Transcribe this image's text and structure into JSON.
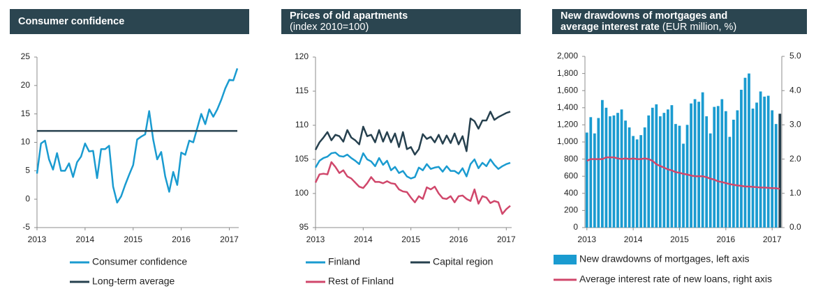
{
  "chart_data": [
    {
      "type": "line",
      "title": "Consumer confidence",
      "categories": [
        "2013",
        null,
        null,
        null,
        null,
        null,
        null,
        null,
        null,
        null,
        null,
        null,
        "2014",
        null,
        null,
        null,
        null,
        null,
        null,
        null,
        null,
        null,
        null,
        null,
        "2015",
        null,
        null,
        null,
        null,
        null,
        null,
        null,
        null,
        null,
        null,
        null,
        "2016",
        null,
        null,
        null,
        null,
        null,
        null,
        null,
        null,
        null,
        null,
        null,
        "2017",
        null,
        null
      ],
      "series": [
        {
          "name": "Consumer confidence",
          "color": "#1a9bd0",
          "values": [
            4.5,
            9.8,
            10.3,
            7,
            5.2,
            8.1,
            5,
            5,
            6.3,
            3.9,
            6.5,
            7.5,
            9.8,
            8.4,
            8.5,
            3.7,
            8.8,
            8.8,
            9.4,
            2.2,
            -0.6,
            0.5,
            2.5,
            4.3,
            6,
            10.5,
            11,
            11.4,
            15.5,
            10.5,
            7,
            8.3,
            4,
            1.3,
            4.8,
            2.5,
            8.2,
            7.8,
            10.3,
            10,
            12.5,
            15,
            13.2,
            15.8,
            14.5,
            15.8,
            17.5,
            19.5,
            21,
            20.9,
            23
          ]
        },
        {
          "name": "Long-term average",
          "color": "#26404e",
          "values": [
            12,
            12,
            12,
            12,
            12,
            12,
            12,
            12,
            12,
            12,
            12,
            12,
            12,
            12,
            12,
            12,
            12,
            12,
            12,
            12,
            12,
            12,
            12,
            12,
            12,
            12,
            12,
            12,
            12,
            12,
            12,
            12,
            12,
            12,
            12,
            12,
            12,
            12,
            12,
            12,
            12,
            12,
            12,
            12,
            12,
            12,
            12,
            12,
            12,
            12,
            12
          ]
        }
      ],
      "ylim": [
        -5,
        25
      ],
      "yticks": [
        -5,
        0,
        5,
        10,
        15,
        20,
        25
      ],
      "grid": false
    },
    {
      "type": "line",
      "title": "Prices of old apartments",
      "subtitle": "(index 2010=100)",
      "categories": [
        "2013",
        null,
        null,
        null,
        null,
        null,
        null,
        null,
        null,
        null,
        null,
        null,
        "2014",
        null,
        null,
        null,
        null,
        null,
        null,
        null,
        null,
        null,
        null,
        null,
        "2015",
        null,
        null,
        null,
        null,
        null,
        null,
        null,
        null,
        null,
        null,
        null,
        "2016",
        null,
        null,
        null,
        null,
        null,
        null,
        null,
        null,
        null,
        null,
        null,
        "2017",
        null
      ],
      "series": [
        {
          "name": "Finland",
          "color": "#1a9bd0",
          "values": [
            103.8,
            104.8,
            105.2,
            105.4,
            105.9,
            106,
            105.5,
            105.4,
            105.7,
            105.2,
            104.8,
            104.3,
            105.9,
            105,
            104.7,
            104,
            105.2,
            104.2,
            104.8,
            103.4,
            103.9,
            103,
            103.3,
            102.5,
            102.2,
            102.4,
            103.8,
            103.4,
            104.3,
            103.6,
            103.8,
            103.9,
            103.2,
            104,
            103.3,
            103.3,
            102.9,
            103.7,
            102.5,
            104.3,
            105,
            103.7,
            104.5,
            104,
            105,
            104.2,
            103.6,
            104,
            104.3,
            104.5
          ]
        },
        {
          "name": "Capital region",
          "color": "#26404e",
          "values": [
            106.4,
            107.5,
            108.2,
            109,
            107.8,
            108.6,
            108.4,
            107.6,
            109.3,
            108.2,
            107.8,
            107.2,
            109.8,
            108.4,
            108.6,
            107.5,
            109.3,
            107.6,
            109,
            107.5,
            108.8,
            106.8,
            109,
            106.5,
            106.8,
            105.7,
            106.5,
            108.7,
            108,
            108.3,
            107.5,
            108.6,
            107.3,
            108.5,
            107.4,
            108.8,
            107.2,
            108.4,
            106.2,
            111,
            110.6,
            109.5,
            110.7,
            110.7,
            112,
            110.8,
            111.2,
            111.5,
            111.8,
            112
          ]
        },
        {
          "name": "Rest of Finland",
          "color": "#d0476b",
          "values": [
            101.6,
            102.8,
            102.9,
            102.8,
            104.6,
            103.9,
            103,
            103.4,
            102.5,
            102.2,
            101.6,
            101,
            100.8,
            101.5,
            102.4,
            101.7,
            101.7,
            101.5,
            101.8,
            101.5,
            101.4,
            100.6,
            100.3,
            100.2,
            99.4,
            98.7,
            99.6,
            99.2,
            100.9,
            100.6,
            101,
            100,
            99.3,
            99.2,
            99.6,
            98.7,
            99.6,
            99.7,
            99.2,
            98.9,
            100.6,
            98.5,
            99.6,
            99.4,
            98.6,
            98.9,
            98.7,
            97,
            97.7,
            98.2
          ]
        }
      ],
      "ylim": [
        95,
        120
      ],
      "yticks": [
        95,
        100,
        105,
        110,
        115,
        120
      ],
      "grid": false
    },
    {
      "type": "combo",
      "title": "New drawdowns of mortgages and average interest rate",
      "subtitle": "(EUR million, %)",
      "categories": [
        "2013",
        null,
        null,
        null,
        null,
        null,
        null,
        null,
        null,
        null,
        null,
        null,
        "2014",
        null,
        null,
        null,
        null,
        null,
        null,
        null,
        null,
        null,
        null,
        null,
        "2015",
        null,
        null,
        null,
        null,
        null,
        null,
        null,
        null,
        null,
        null,
        null,
        "2016",
        null,
        null,
        null,
        null,
        null,
        null,
        null,
        null,
        null,
        null,
        null,
        "2017",
        null,
        null
      ],
      "series": [
        {
          "name": "New drawdowns of mortgages, left axis",
          "type": "bar",
          "color": "#1a9bd0",
          "highlight": {
            "index": 50,
            "color": "#26404e"
          },
          "values": [
            1110,
            1290,
            1100,
            1280,
            1490,
            1400,
            1300,
            1310,
            1340,
            1380,
            1250,
            1170,
            1070,
            1030,
            1080,
            1170,
            1310,
            1400,
            1440,
            1300,
            1340,
            1380,
            1430,
            1210,
            1190,
            980,
            1200,
            1450,
            1500,
            1470,
            1580,
            1300,
            1100,
            1410,
            1420,
            1500,
            1360,
            1060,
            1260,
            1370,
            1610,
            1750,
            1800,
            1390,
            1460,
            1590,
            1530,
            1540,
            1370,
            1210,
            1330
          ]
        },
        {
          "name": "Average interest rate of new loans, right axis",
          "type": "line",
          "axis": "y2",
          "color": "#d0476b",
          "values": [
            1.95,
            2.0,
            2.0,
            2.0,
            2.0,
            2.05,
            2.05,
            2.05,
            2.02,
            2.0,
            2.02,
            2.0,
            2.02,
            2.0,
            2.0,
            2.02,
            2.0,
            1.95,
            1.85,
            1.8,
            1.75,
            1.7,
            1.67,
            1.62,
            1.6,
            1.57,
            1.55,
            1.52,
            1.5,
            1.5,
            1.5,
            1.47,
            1.43,
            1.4,
            1.35,
            1.33,
            1.3,
            1.27,
            1.25,
            1.23,
            1.22,
            1.2,
            1.2,
            1.19,
            1.18,
            1.17,
            1.17,
            1.16,
            1.15,
            1.15,
            1.13
          ]
        }
      ],
      "ylim": [
        0,
        2000
      ],
      "yticks": [
        0,
        200,
        400,
        600,
        800,
        {
          "value": 1000,
          "label": "1,000"
        },
        {
          "value": 1200,
          "label": "1,200"
        },
        {
          "value": 1400,
          "label": "1,400"
        },
        {
          "value": 1600,
          "label": "1,600"
        },
        {
          "value": 1800,
          "label": "1,800"
        },
        {
          "value": 2000,
          "label": "2,000"
        }
      ],
      "y2lim": [
        0,
        5
      ],
      "y2ticks": [
        {
          "value": 0,
          "label": "0.0"
        },
        {
          "value": 1,
          "label": "1.0"
        },
        {
          "value": 2,
          "label": "2.0"
        },
        {
          "value": 3,
          "label": "3.0"
        },
        {
          "value": 4,
          "label": "4.0"
        },
        {
          "value": 5,
          "label": "5.0"
        }
      ],
      "grid": false
    }
  ]
}
